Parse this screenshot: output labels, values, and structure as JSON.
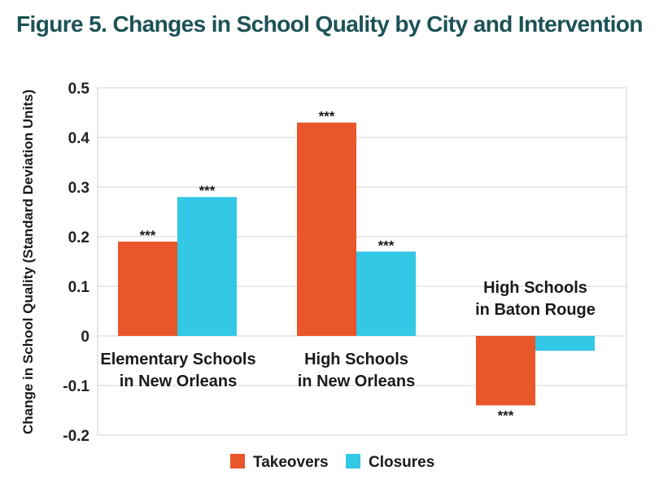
{
  "chart_data": {
    "type": "bar",
    "title": "Figure 5. Changes in School Quality by City and Intervention",
    "ylabel": "Change in School Quality (Standard Deviation Units)",
    "xlabel": "",
    "ylim": [
      -0.2,
      0.5
    ],
    "yticks": [
      "0.5",
      "0.4",
      "0.3",
      "0.2",
      "0.1",
      "0",
      "-0.1",
      "-0.2"
    ],
    "ytick_values": [
      0.5,
      0.4,
      0.3,
      0.2,
      0.1,
      0,
      -0.1,
      -0.2
    ],
    "grid": true,
    "legend_position": "bottom-center",
    "categories": [
      [
        "Elementary Schools",
        "in New Orleans"
      ],
      [
        "High Schools",
        "in New Orleans"
      ],
      [
        "High Schools",
        "in Baton Rouge"
      ]
    ],
    "series": [
      {
        "name": "Takeovers",
        "color": "#e8562a",
        "values": [
          0.19,
          0.43,
          -0.14
        ],
        "labels": [
          "***",
          "***",
          "***"
        ]
      },
      {
        "name": "Closures",
        "color": "#33c8e6",
        "values": [
          0.28,
          0.17,
          -0.03
        ],
        "labels": [
          "***",
          "***",
          ""
        ]
      }
    ]
  }
}
